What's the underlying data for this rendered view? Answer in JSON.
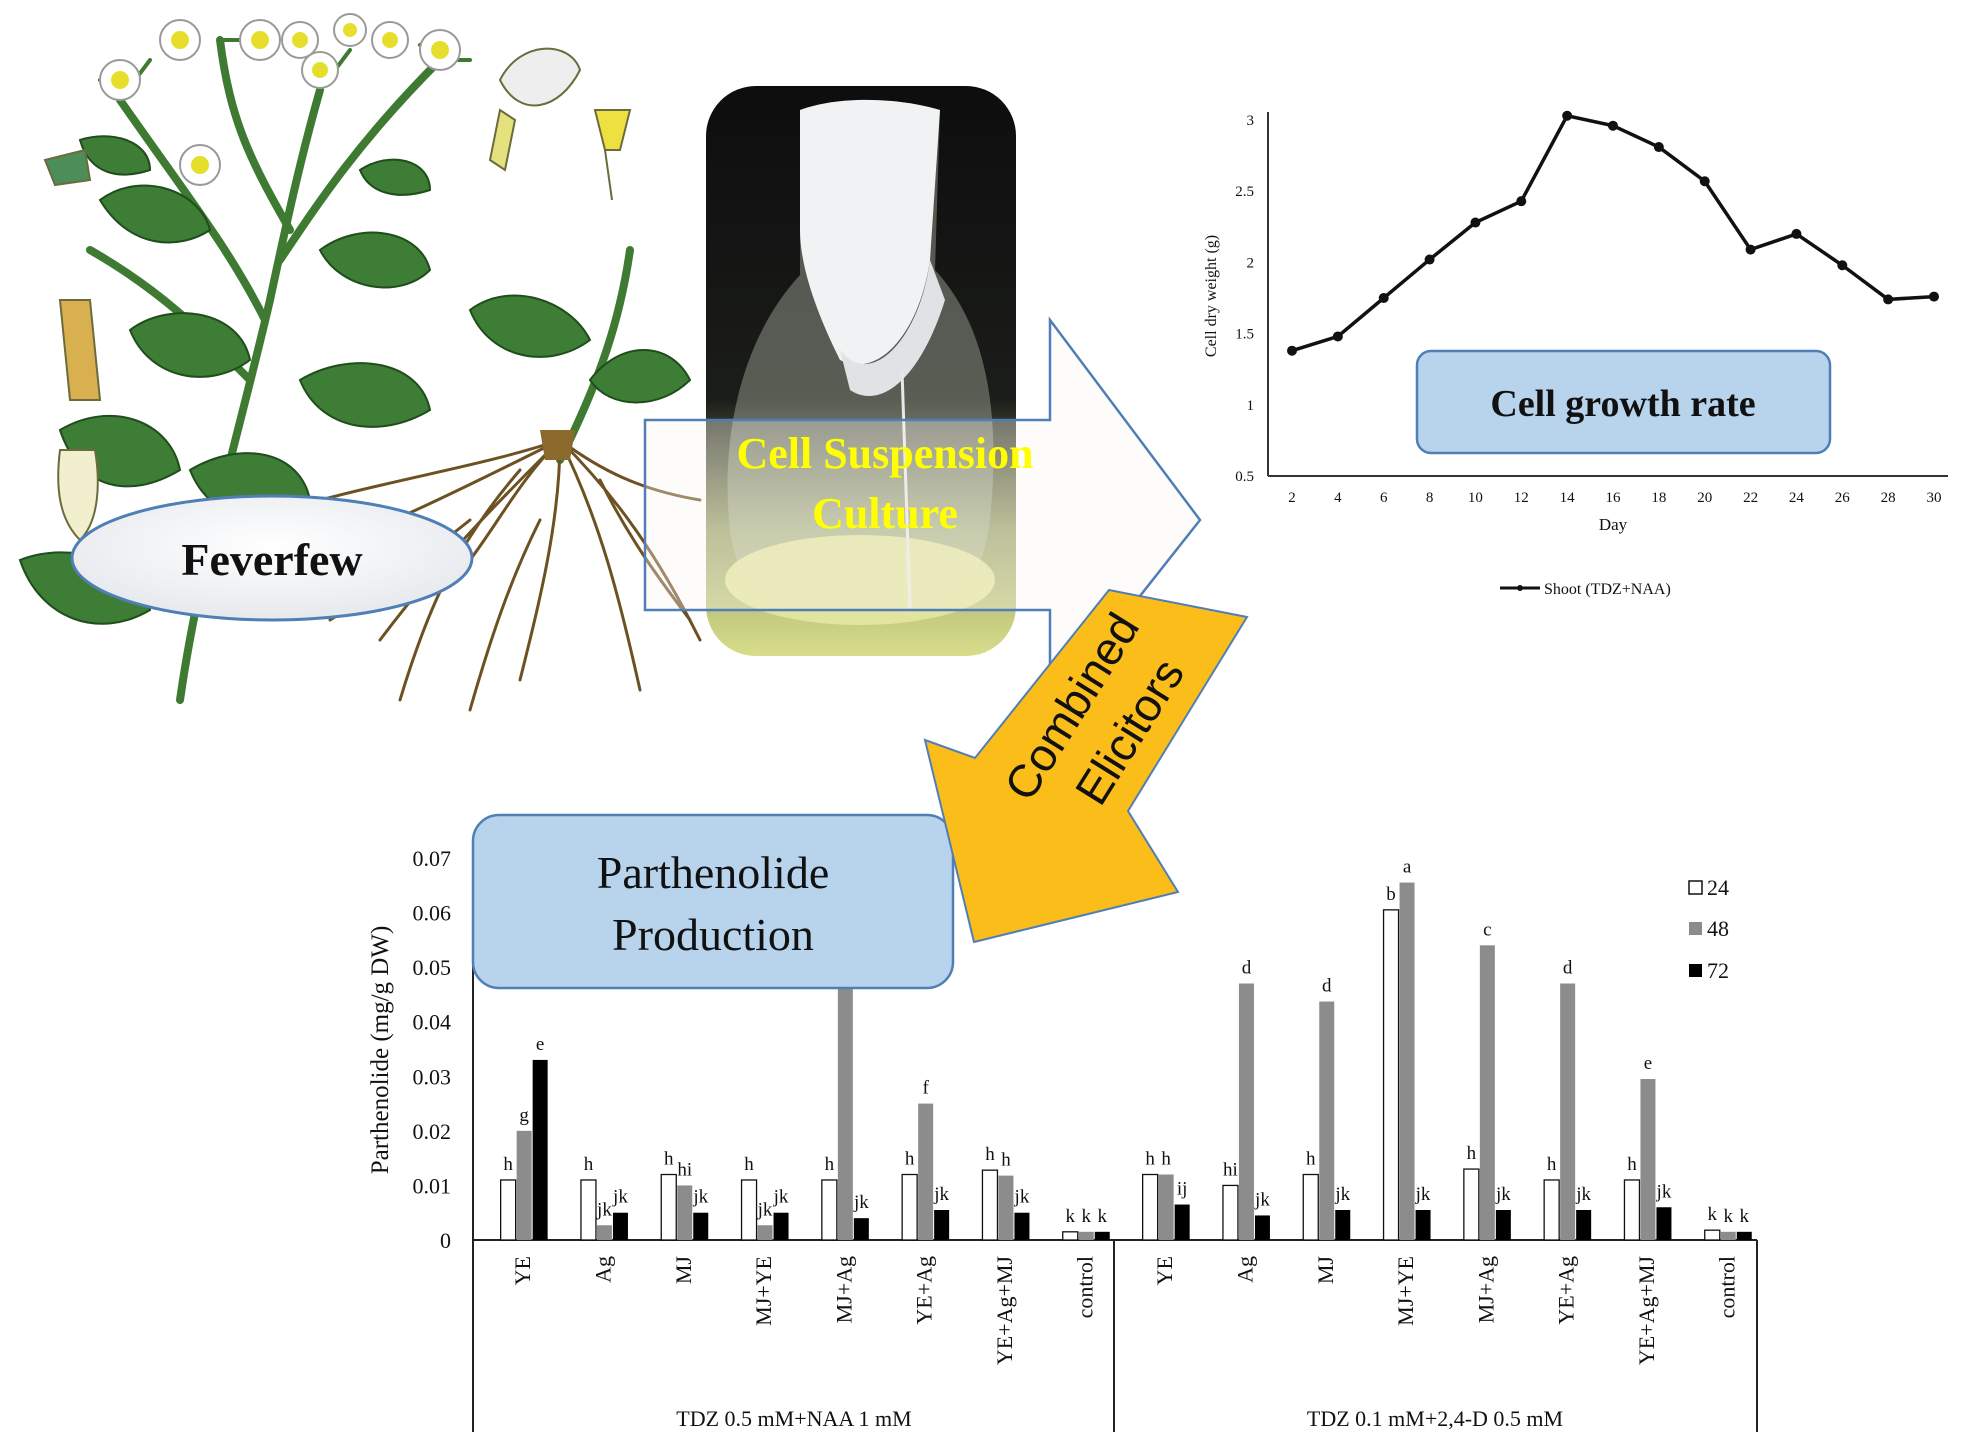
{
  "feverfew_label": "Feverfew",
  "suspension_label_line1": "Cell Suspension",
  "suspension_label_line2": "Culture",
  "elicitors_label_line1": "Combined",
  "elicitors_label_line2": "Elicitors",
  "growth_box_label": "Cell growth rate",
  "production_box_line1": "Parthenolide",
  "production_box_line2": "Production",
  "colors": {
    "arrow_fill": "#fbbd19",
    "box_fill": "#b8d4ec",
    "box_stroke": "#4f7fb6",
    "suspension_text": "#ffff00",
    "ellipse_fill": "#e9ecef",
    "bar_24": "#ffffff",
    "bar_48": "#8c8c8c",
    "bar_72": "#000000"
  },
  "chart_data": [
    {
      "type": "line",
      "xlabel": "Day",
      "ylabel": "Cell dry weight (g)",
      "xlim": [
        2,
        30
      ],
      "ylim": [
        0.5,
        3
      ],
      "x": [
        2,
        4,
        6,
        8,
        10,
        12,
        14,
        16,
        18,
        20,
        22,
        24,
        26,
        28,
        30
      ],
      "x_ticks": [
        "2",
        "4",
        "6",
        "8",
        "10",
        "12",
        "14",
        "16",
        "18",
        "20",
        "22",
        "24",
        "26",
        "28",
        "30"
      ],
      "y_ticks": [
        "0.5",
        "1",
        "1.5",
        "2",
        "2.5",
        "3"
      ],
      "series": [
        {
          "name": "Shoot (TDZ+NAA)",
          "values": [
            1.38,
            1.48,
            1.75,
            2.02,
            2.28,
            2.43,
            3.03,
            2.96,
            2.81,
            2.57,
            2.09,
            2.2,
            1.98,
            1.74,
            1.76
          ]
        }
      ],
      "legend": "bottom"
    },
    {
      "type": "bar",
      "ylabel": "Parthenolide (mg/g DW)",
      "ylim": [
        0,
        0.07
      ],
      "y_ticks": [
        "0",
        "0.01",
        "0.02",
        "0.03",
        "0.04",
        "0.05",
        "0.06",
        "0.07"
      ],
      "legend": "top-right",
      "series_names": [
        "24",
        "48",
        "72"
      ],
      "groups": [
        {
          "label": "TDZ 0.5 mM+NAA 1 mM",
          "categories": [
            "YE",
            "Ag",
            "MJ",
            "MJ+YE",
            "MJ+Ag",
            "YE+Ag",
            "YE+Ag+MJ",
            "control"
          ],
          "values": [
            [
              0.011,
              0.02,
              0.033
            ],
            [
              0.011,
              0.0027,
              0.005
            ],
            [
              0.012,
              0.01,
              0.005
            ],
            [
              0.011,
              0.0027,
              0.005
            ],
            [
              0.011,
              0.048,
              0.004
            ],
            [
              0.012,
              0.025,
              0.0055
            ],
            [
              0.0128,
              0.0118,
              0.005
            ],
            [
              0.0015,
              0.0015,
              0.0015
            ]
          ],
          "letters": [
            [
              "h",
              "g",
              "e"
            ],
            [
              "h",
              "jk",
              "jk"
            ],
            [
              "h",
              "hi",
              "jk"
            ],
            [
              "h",
              "jk",
              "jk"
            ],
            [
              "h",
              "",
              "jk"
            ],
            [
              "h",
              "f",
              "jk"
            ],
            [
              "h",
              "h",
              "jk"
            ],
            [
              "k",
              "k",
              "k"
            ]
          ]
        },
        {
          "label": "TDZ 0.1 mM+2,4-D 0.5 mM",
          "categories": [
            "YE",
            "Ag",
            "MJ",
            "MJ+YE",
            "MJ+Ag",
            "YE+Ag",
            "YE+Ag+MJ",
            "control"
          ],
          "values": [
            [
              0.012,
              0.012,
              0.0065
            ],
            [
              0.01,
              0.047,
              0.0045
            ],
            [
              0.012,
              0.0437,
              0.0055
            ],
            [
              0.0605,
              0.0655,
              0.0055
            ],
            [
              0.013,
              0.054,
              0.0055
            ],
            [
              0.011,
              0.047,
              0.0055
            ],
            [
              0.011,
              0.0295,
              0.006
            ],
            [
              0.0018,
              0.0015,
              0.0015
            ]
          ],
          "letters": [
            [
              "h",
              "h",
              "ij"
            ],
            [
              "hi",
              "d",
              "jk"
            ],
            [
              "h",
              "d",
              "jk"
            ],
            [
              "b",
              "a",
              "jk"
            ],
            [
              "h",
              "c",
              "jk"
            ],
            [
              "h",
              "d",
              "jk"
            ],
            [
              "h",
              "e",
              "jk"
            ],
            [
              "k",
              "k",
              "k"
            ]
          ]
        }
      ]
    }
  ]
}
